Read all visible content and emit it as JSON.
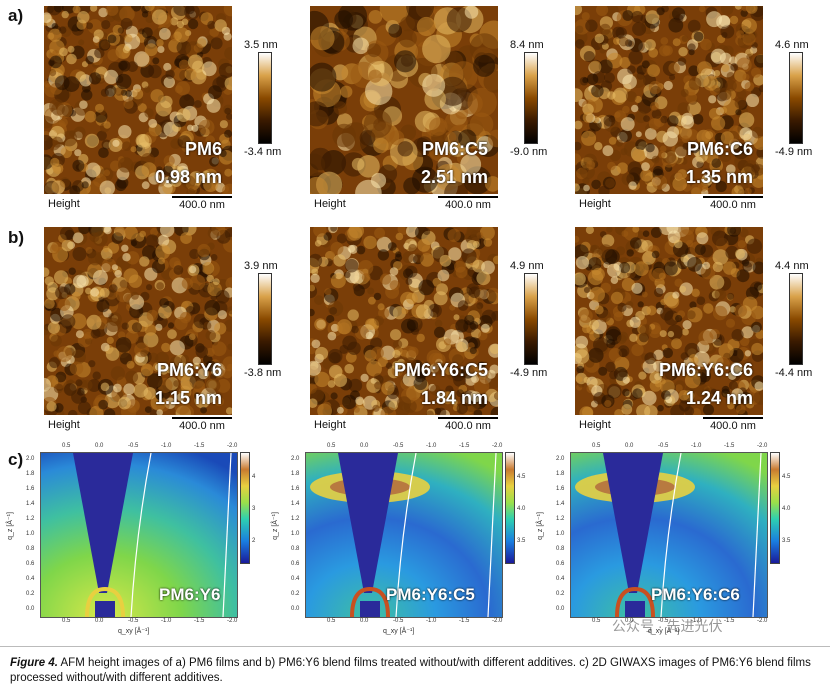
{
  "rows": {
    "a": "a)",
    "b": "b)",
    "c": "c)"
  },
  "afm_common": {
    "height_label": "Height",
    "scale": "400.0 nm"
  },
  "afm_a": [
    {
      "sample": "PM6",
      "roughness": "0.98 nm",
      "cmax": "3.5 nm",
      "cmin": "-3.4 nm"
    },
    {
      "sample": "PM6:C5",
      "roughness": "2.51 nm",
      "cmax": "8.4 nm",
      "cmin": "-9.0 nm"
    },
    {
      "sample": "PM6:C6",
      "roughness": "1.35 nm",
      "cmax": "4.6 nm",
      "cmin": "-4.9 nm"
    }
  ],
  "afm_b": [
    {
      "sample": "PM6:Y6",
      "roughness": "1.15 nm",
      "cmax": "3.9 nm",
      "cmin": "-3.8 nm"
    },
    {
      "sample": "PM6:Y6:C5",
      "roughness": "1.84 nm",
      "cmax": "4.9 nm",
      "cmin": "-4.9 nm"
    },
    {
      "sample": "PM6:Y6:C6",
      "roughness": "1.24 nm",
      "cmax": "4.4 nm",
      "cmin": "-4.4 nm"
    }
  ],
  "giwaxs": [
    {
      "sample": "PM6:Y6",
      "cticks": [
        "4",
        "3",
        "2"
      ]
    },
    {
      "sample": "PM6:Y6:C5",
      "cticks": [
        "4.5",
        "4.0",
        "3.5"
      ]
    },
    {
      "sample": "PM6:Y6:C6",
      "cticks": [
        "4.5",
        "4.0",
        "3.5"
      ]
    }
  ],
  "giwaxs_axes": {
    "xlabel": "q_xy [Å⁻¹]",
    "ylabel": "q_z [Å⁻¹]",
    "xticks": [
      "0.5",
      "0.0",
      "-0.5",
      "-1.0",
      "-1.5",
      "-2.0"
    ],
    "yticks": [
      "2.0",
      "1.8",
      "1.6",
      "1.4",
      "1.2",
      "1.0",
      "0.8",
      "0.6",
      "0.4",
      "0.2",
      "0.0"
    ]
  },
  "caption": {
    "label": "Figure 4.",
    "text": "AFM height images of a) PM6 films and b) PM6:Y6 blend films treated without/with different additives. c) 2D GIWAXS images of PM6:Y6 blend films processed without/with different additives."
  },
  "watermark": "公众号 · 先进光伏",
  "colors": {
    "afm_dark": "#2a1200",
    "afm_light": "#f5d07a",
    "giwaxs_bg": "#2fb0a0",
    "shadow": "#2a2a9a"
  }
}
